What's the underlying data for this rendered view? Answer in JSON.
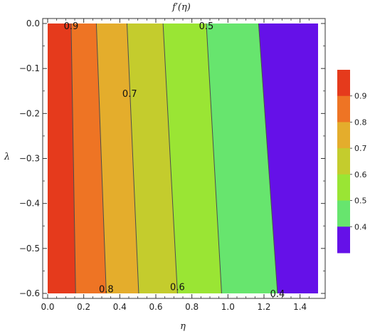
{
  "chart_data": {
    "type": "contour",
    "title": "f′(η)",
    "xlabel": "η",
    "ylabel": "λ",
    "xlim": [
      0.0,
      1.5
    ],
    "ylim": [
      -0.62,
      0.02
    ],
    "x_ticks": [
      "0.0",
      "0.2",
      "0.4",
      "0.6",
      "0.8",
      "1.0",
      "1.2",
      "1.4"
    ],
    "x_tick_values": [
      0.0,
      0.2,
      0.4,
      0.6,
      0.8,
      1.0,
      1.2,
      1.4
    ],
    "y_ticks": [
      "0.0",
      "−0.1",
      "−0.2",
      "−0.3",
      "−0.4",
      "−0.5",
      "−0.6"
    ],
    "y_tick_values": [
      0.0,
      -0.1,
      -0.2,
      -0.3,
      -0.4,
      -0.5,
      -0.6
    ],
    "contour_lines": [
      {
        "level": 0.9,
        "eta_top": 0.13,
        "eta_bottom": 0.155
      },
      {
        "level": 0.8,
        "eta_top": 0.27,
        "eta_bottom": 0.325
      },
      {
        "level": 0.7,
        "eta_top": 0.44,
        "eta_bottom": 0.505
      },
      {
        "level": 0.6,
        "eta_top": 0.64,
        "eta_bottom": 0.72
      },
      {
        "level": 0.5,
        "eta_top": 0.88,
        "eta_bottom": 0.965
      },
      {
        "level": 0.4,
        "eta_top": 1.17,
        "eta_bottom": 1.275
      }
    ],
    "bands": [
      {
        "range": "> 0.9",
        "color": "#e53a1c"
      },
      {
        "range": "0.8 – 0.9",
        "color": "#ee7424"
      },
      {
        "range": "0.7 – 0.8",
        "color": "#e4ad2c"
      },
      {
        "range": "0.6 – 0.7",
        "color": "#c4cc2d"
      },
      {
        "range": "0.5 – 0.6",
        "color": "#9ae534"
      },
      {
        "range": "0.4 – 0.5",
        "color": "#67e56e"
      },
      {
        "range": "< 0.4",
        "color": "#6511e8"
      }
    ],
    "contour_labels": [
      {
        "text": "0.9",
        "eta": 0.13,
        "lambda": -0.005
      },
      {
        "text": "0.5",
        "eta": 0.88,
        "lambda": -0.005
      },
      {
        "text": "0.7",
        "eta": 0.455,
        "lambda": -0.155
      },
      {
        "text": "0.8",
        "eta": 0.325,
        "lambda": -0.59
      },
      {
        "text": "0.6",
        "eta": 0.72,
        "lambda": -0.585
      },
      {
        "text": "0.4",
        "eta": 1.275,
        "lambda": -0.6
      }
    ],
    "legend": {
      "placement": "right",
      "labels": [
        "0.9",
        "0.8",
        "0.7",
        "0.6",
        "0.5",
        "0.4"
      ],
      "colors": [
        "#e53a1c",
        "#ee7424",
        "#e4ad2c",
        "#c4cc2d",
        "#9ae534",
        "#67e56e",
        "#6511e8"
      ]
    }
  }
}
